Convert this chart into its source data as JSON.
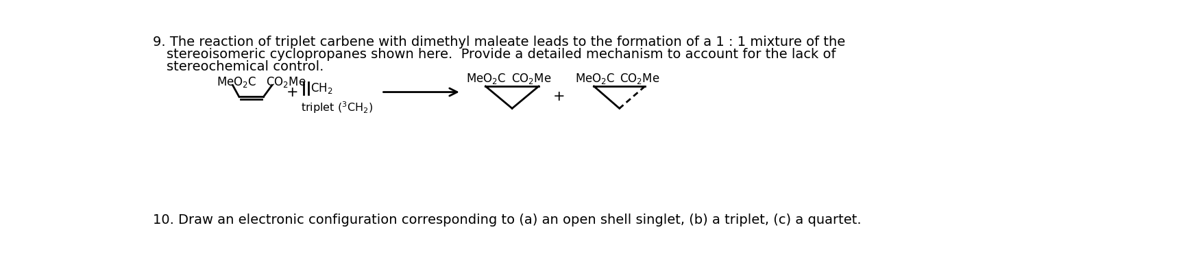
{
  "bg_color": "#ffffff",
  "text_color": "#000000",
  "line1": "9. The reaction of triplet carbene with dimethyl maleate leads to the formation of a 1 : 1 mixture of the",
  "line2": "stereoisomeric cyclopropanes shown here.  Provide a detailed mechanism to account for the lack of",
  "line3": "stereochemical control.",
  "line4": "10. Draw an electronic configuration corresponding to (a) an open shell singlet, (b) a triplet, (c) a quartet.",
  "font_size_text": 14.0,
  "font_size_chem": 12.0,
  "font_family": "DejaVu Sans"
}
